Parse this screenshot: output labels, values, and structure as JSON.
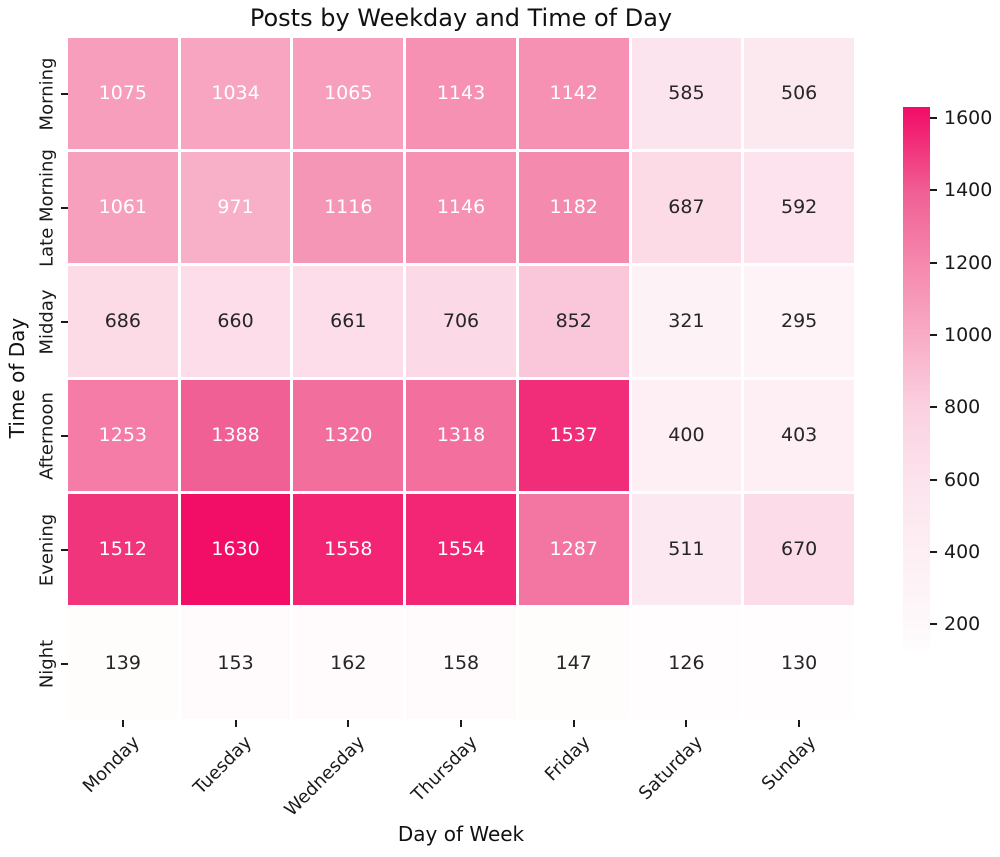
{
  "title": "Posts by Weekday and Time of Day",
  "chart_data": {
    "type": "heatmap",
    "title": "Posts by Weekday and Time of Day",
    "xlabel": "Day of Week",
    "ylabel": "Time of Day",
    "columns": [
      "Monday",
      "Tuesday",
      "Wednesday",
      "Thursday",
      "Friday",
      "Saturday",
      "Sunday"
    ],
    "rows": [
      "Morning",
      "Late Morning",
      "Midday",
      "Afternoon",
      "Evening",
      "Night"
    ],
    "values": [
      [
        1075,
        1034,
        1065,
        1143,
        1142,
        585,
        506
      ],
      [
        1061,
        971,
        1116,
        1146,
        1182,
        687,
        592
      ],
      [
        686,
        660,
        661,
        706,
        852,
        321,
        295
      ],
      [
        1253,
        1388,
        1320,
        1318,
        1537,
        400,
        403
      ],
      [
        1512,
        1630,
        1558,
        1554,
        1287,
        511,
        670
      ],
      [
        139,
        153,
        162,
        158,
        147,
        126,
        130
      ]
    ],
    "vmin": 126,
    "vmax": 1630,
    "colorbar_ticks": [
      200,
      400,
      600,
      800,
      1000,
      1200,
      1400,
      1600
    ],
    "colormap_stops": [
      [
        126,
        "#fffdfd"
      ],
      [
        200,
        "#fef8fa"
      ],
      [
        400,
        "#fdeff4"
      ],
      [
        600,
        "#fce3ed"
      ],
      [
        800,
        "#fbd0e0"
      ],
      [
        1000,
        "#f8abc5"
      ],
      [
        1200,
        "#f587ad"
      ],
      [
        1400,
        "#f05e93"
      ],
      [
        1600,
        "#f2156b"
      ],
      [
        1630,
        "#f20d66"
      ]
    ],
    "white_text_min": 900,
    "annotation_color_dark": "#262626",
    "annotation_color_light": "#ffffff",
    "legend_position": "right",
    "grid": false
  }
}
